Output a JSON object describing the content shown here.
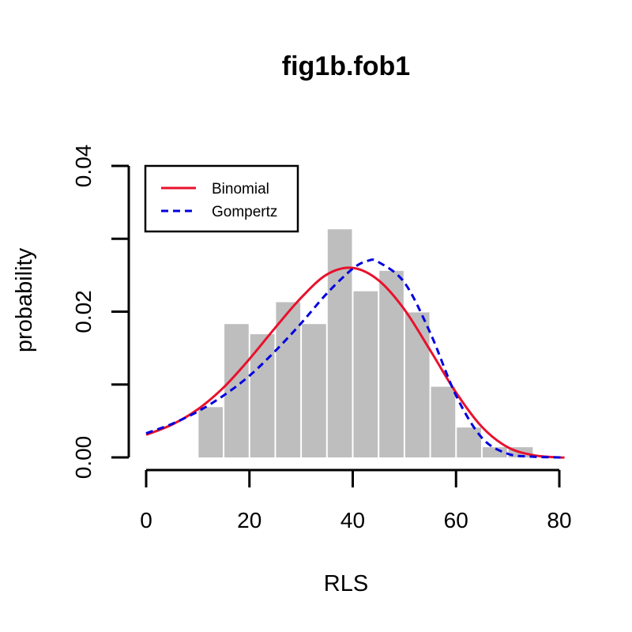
{
  "chart_data": {
    "type": "bar",
    "title": "fig1b.fob1",
    "xlabel": "RLS",
    "ylabel": "probability",
    "xlim": [
      0,
      80
    ],
    "ylim": [
      0,
      0.04
    ],
    "x_ticks": [
      0,
      20,
      40,
      60,
      80
    ],
    "x_tick_labels": [
      "0",
      "20",
      "40",
      "60",
      "80"
    ],
    "y_ticks": [
      0,
      0.01,
      0.02,
      0.03,
      0.04
    ],
    "y_tick_labels": [
      "0.00",
      "",
      "0.02",
      "",
      "0.04"
    ],
    "histogram": {
      "color": "#bebebe",
      "bins": [
        {
          "x0": 10,
          "x1": 15,
          "value": 0.0069
        },
        {
          "x0": 15,
          "x1": 20,
          "value": 0.0183
        },
        {
          "x0": 20,
          "x1": 25,
          "value": 0.0169
        },
        {
          "x0": 25,
          "x1": 30,
          "value": 0.0213
        },
        {
          "x0": 30,
          "x1": 35,
          "value": 0.0183
        },
        {
          "x0": 35,
          "x1": 40,
          "value": 0.0313
        },
        {
          "x0": 40,
          "x1": 45,
          "value": 0.0228
        },
        {
          "x0": 45,
          "x1": 50,
          "value": 0.0256
        },
        {
          "x0": 50,
          "x1": 55,
          "value": 0.0199
        },
        {
          "x0": 55,
          "x1": 60,
          "value": 0.0097
        },
        {
          "x0": 60,
          "x1": 65,
          "value": 0.0041
        },
        {
          "x0": 65,
          "x1": 70,
          "value": 0.0014
        },
        {
          "x0": 70,
          "x1": 75,
          "value": 0.0014
        }
      ]
    },
    "series": [
      {
        "name": "Binomial",
        "color": "#e8112d",
        "style": "solid",
        "x": [
          0,
          5,
          10,
          15,
          20,
          25,
          30,
          35,
          40,
          45,
          50,
          55,
          60,
          65,
          70,
          75,
          80,
          81
        ],
        "values": [
          0.0031,
          0.0045,
          0.0066,
          0.0096,
          0.0135,
          0.0178,
          0.0219,
          0.0251,
          0.026,
          0.0243,
          0.0203,
          0.0147,
          0.0089,
          0.0042,
          0.0014,
          0.0003,
          0.0,
          0.0
        ]
      },
      {
        "name": "Gompertz",
        "color": "#0000e0",
        "style": "dashed",
        "x": [
          0,
          5,
          10,
          15,
          20,
          25,
          30,
          35,
          40,
          43,
          45,
          50,
          55,
          60,
          65,
          70,
          75,
          80,
          81
        ],
        "values": [
          0.0033,
          0.0046,
          0.0063,
          0.0085,
          0.0112,
          0.0146,
          0.0184,
          0.0225,
          0.0259,
          0.027,
          0.0268,
          0.024,
          0.0171,
          0.0085,
          0.0027,
          0.0005,
          0.0001,
          0.0,
          0.0
        ]
      }
    ],
    "legend": {
      "position": "top-left",
      "entries": [
        "Binomial",
        "Gompertz"
      ]
    }
  }
}
